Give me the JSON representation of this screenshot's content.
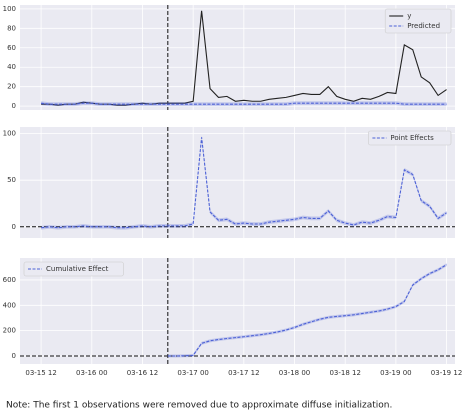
{
  "chart_data": [
    {
      "type": "line",
      "x": [
        "03-15 12",
        "03-15 14",
        "03-15 16",
        "03-15 18",
        "03-15 20",
        "03-15 22",
        "03-16 00",
        "03-16 02",
        "03-16 04",
        "03-16 06",
        "03-16 08",
        "03-16 10",
        "03-16 12",
        "03-16 14",
        "03-16 16",
        "03-16 18",
        "03-16 20",
        "03-16 22",
        "03-17 00",
        "03-17 02",
        "03-17 04",
        "03-17 06",
        "03-17 08",
        "03-17 10",
        "03-17 12",
        "03-17 14",
        "03-17 16",
        "03-17 18",
        "03-17 20",
        "03-17 22",
        "03-18 00",
        "03-18 02",
        "03-18 04",
        "03-18 06",
        "03-18 08",
        "03-18 10",
        "03-18 12",
        "03-18 14",
        "03-18 16",
        "03-18 18",
        "03-18 20",
        "03-18 22",
        "03-19 00",
        "03-19 02",
        "03-19 04",
        "03-19 06",
        "03-19 08",
        "03-19 10",
        "03-19 12"
      ],
      "xlim": [
        "03-15 07",
        "03-19 14"
      ],
      "ylim": [
        -4,
        104
      ],
      "yticks": [
        0,
        20,
        40,
        60,
        80,
        100
      ],
      "intervention": "03-16 18",
      "legend": "upper right",
      "series": [
        {
          "name": "y",
          "color": "#222222",
          "style": "solid",
          "values": [
            2,
            2,
            1,
            2,
            2,
            4,
            3,
            2,
            2,
            1,
            1,
            2,
            3,
            2,
            3,
            3,
            3,
            3,
            5,
            98,
            18,
            9,
            10,
            5,
            6,
            5,
            5,
            7,
            8,
            9,
            11,
            13,
            12,
            12,
            20,
            10,
            7,
            5,
            8,
            7,
            10,
            14,
            13,
            63,
            58,
            30,
            24,
            11,
            17
          ]
        },
        {
          "name": "Predicted",
          "color": "#4c61d6",
          "style": "dashed",
          "band": 2,
          "values": [
            3,
            2,
            2,
            2,
            2,
            3,
            3,
            2,
            2,
            2,
            2,
            2,
            2,
            2,
            2,
            2,
            2,
            2,
            2,
            2,
            2,
            2,
            2,
            2,
            2,
            2,
            2,
            2,
            2,
            2,
            3,
            3,
            3,
            3,
            3,
            3,
            3,
            3,
            3,
            3,
            3,
            3,
            3,
            2,
            2,
            2,
            2,
            2,
            2
          ]
        }
      ]
    },
    {
      "type": "line",
      "x": [
        "03-15 12",
        "03-15 14",
        "03-15 16",
        "03-15 18",
        "03-15 20",
        "03-15 22",
        "03-16 00",
        "03-16 02",
        "03-16 04",
        "03-16 06",
        "03-16 08",
        "03-16 10",
        "03-16 12",
        "03-16 14",
        "03-16 16",
        "03-16 18",
        "03-16 20",
        "03-16 22",
        "03-17 00",
        "03-17 02",
        "03-17 04",
        "03-17 06",
        "03-17 08",
        "03-17 10",
        "03-17 12",
        "03-17 14",
        "03-17 16",
        "03-17 18",
        "03-17 20",
        "03-17 22",
        "03-18 00",
        "03-18 02",
        "03-18 04",
        "03-18 06",
        "03-18 08",
        "03-18 10",
        "03-18 12",
        "03-18 14",
        "03-18 16",
        "03-18 18",
        "03-18 20",
        "03-18 22",
        "03-19 00",
        "03-19 02",
        "03-19 04",
        "03-19 06",
        "03-19 08",
        "03-19 10",
        "03-19 12"
      ],
      "xlim": [
        "03-15 07",
        "03-19 14"
      ],
      "ylim": [
        -12,
        107
      ],
      "yticks": [
        0,
        50,
        100
      ],
      "intervention": "03-16 18",
      "zero_line": true,
      "legend": "upper right",
      "series": [
        {
          "name": "Point Effects",
          "color": "#4c61d6",
          "style": "dashed",
          "band": 2,
          "values": [
            -1,
            0,
            -1,
            0,
            0,
            1,
            0,
            0,
            0,
            -1,
            -1,
            0,
            1,
            0,
            1,
            1,
            1,
            1,
            3,
            96,
            16,
            7,
            8,
            3,
            4,
            3,
            3,
            5,
            6,
            7,
            8,
            10,
            9,
            9,
            17,
            7,
            4,
            2,
            5,
            4,
            7,
            11,
            10,
            61,
            56,
            28,
            22,
            9,
            15
          ]
        }
      ]
    },
    {
      "type": "line",
      "x": [
        "03-15 12",
        "03-15 14",
        "03-15 16",
        "03-15 18",
        "03-15 20",
        "03-15 22",
        "03-16 00",
        "03-16 02",
        "03-16 04",
        "03-16 06",
        "03-16 08",
        "03-16 10",
        "03-16 12",
        "03-16 14",
        "03-16 16",
        "03-16 18",
        "03-16 20",
        "03-16 22",
        "03-17 00",
        "03-17 02",
        "03-17 04",
        "03-17 06",
        "03-17 08",
        "03-17 10",
        "03-17 12",
        "03-17 14",
        "03-17 16",
        "03-17 18",
        "03-17 20",
        "03-17 22",
        "03-18 00",
        "03-18 02",
        "03-18 04",
        "03-18 06",
        "03-18 08",
        "03-18 10",
        "03-18 12",
        "03-18 14",
        "03-18 16",
        "03-18 18",
        "03-18 20",
        "03-18 22",
        "03-19 00",
        "03-19 02",
        "03-19 04",
        "03-19 06",
        "03-19 08",
        "03-19 10",
        "03-19 12"
      ],
      "xlim": [
        "03-15 07",
        "03-19 14"
      ],
      "xticks": [
        "03-15 12",
        "03-16 00",
        "03-16 12",
        "03-17 00",
        "03-17 12",
        "03-18 00",
        "03-18 12",
        "03-19 00",
        "03-19 12"
      ],
      "ylim": [
        -63,
        773
      ],
      "yticks": [
        0,
        200,
        400,
        600
      ],
      "intervention": "03-16 18",
      "zero_line": true,
      "legend": "upper left",
      "series": [
        {
          "name": "Cumulative Effect",
          "color": "#4c61d6",
          "style": "dashed",
          "band": 12,
          "values": [
            null,
            null,
            null,
            null,
            null,
            null,
            null,
            null,
            null,
            null,
            null,
            null,
            null,
            null,
            null,
            0,
            0,
            2,
            5,
            100,
            120,
            130,
            138,
            145,
            152,
            160,
            168,
            178,
            190,
            205,
            225,
            250,
            270,
            290,
            305,
            312,
            318,
            325,
            335,
            345,
            355,
            370,
            390,
            430,
            560,
            610,
            650,
            680,
            720
          ]
        }
      ]
    }
  ],
  "note": "Note: The first 1 observations were removed due to approximate diffuse initialization."
}
